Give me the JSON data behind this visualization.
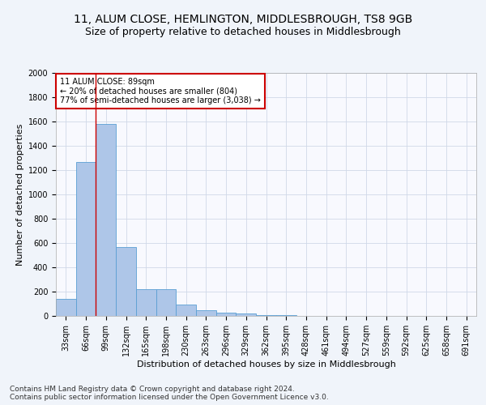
{
  "title1": "11, ALUM CLOSE, HEMLINGTON, MIDDLESBROUGH, TS8 9GB",
  "title2": "Size of property relative to detached houses in Middlesbrough",
  "xlabel": "Distribution of detached houses by size in Middlesbrough",
  "ylabel": "Number of detached properties",
  "categories": [
    "33sqm",
    "66sqm",
    "99sqm",
    "132sqm",
    "165sqm",
    "198sqm",
    "230sqm",
    "263sqm",
    "296sqm",
    "329sqm",
    "362sqm",
    "395sqm",
    "428sqm",
    "461sqm",
    "494sqm",
    "527sqm",
    "559sqm",
    "592sqm",
    "625sqm",
    "658sqm",
    "691sqm"
  ],
  "values": [
    140,
    1270,
    1580,
    570,
    220,
    220,
    95,
    50,
    30,
    20,
    10,
    5,
    2,
    1,
    1,
    0,
    0,
    0,
    0,
    0,
    0
  ],
  "bar_color": "#aec6e8",
  "bar_edge_color": "#5a9fd4",
  "marker_line_color": "#cc0000",
  "annotation_text": "11 ALUM CLOSE: 89sqm\n← 20% of detached houses are smaller (804)\n77% of semi-detached houses are larger (3,038) →",
  "annotation_box_color": "#ffffff",
  "annotation_box_edge": "#cc0000",
  "ylim": [
    0,
    2000
  ],
  "yticks": [
    0,
    200,
    400,
    600,
    800,
    1000,
    1200,
    1400,
    1600,
    1800,
    2000
  ],
  "footer_text": "Contains HM Land Registry data © Crown copyright and database right 2024.\nContains public sector information licensed under the Open Government Licence v3.0.",
  "bg_color": "#f0f4fa",
  "plot_bg_color": "#f8f9fe",
  "grid_color": "#d0d8e8",
  "title1_fontsize": 10,
  "title2_fontsize": 9,
  "axis_label_fontsize": 8,
  "tick_fontsize": 7,
  "footer_fontsize": 6.5
}
